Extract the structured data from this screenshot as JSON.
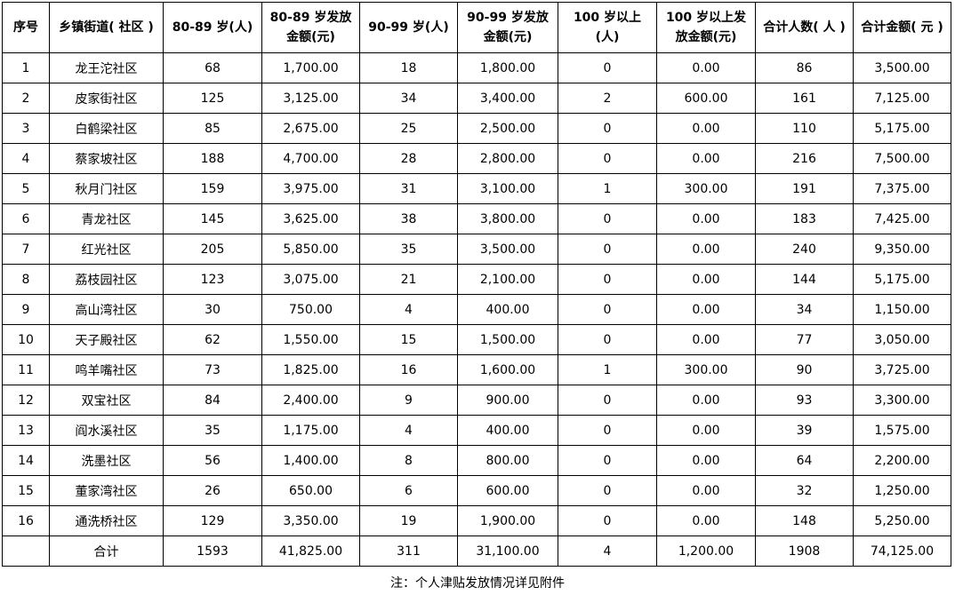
{
  "table": {
    "header": [
      [
        "序号"
      ],
      [
        "乡镇街道( 社区 )"
      ],
      [
        "80-89 岁(人)"
      ],
      [
        "80-89 岁发放",
        "金额(元)"
      ],
      [
        "90-99 岁(人)"
      ],
      [
        "90-99 岁发放",
        "金额(元)"
      ],
      [
        "100 岁以上",
        "(人)"
      ],
      [
        "100 岁以上发",
        "放金额(元)"
      ],
      [
        "合计人数( 人 )"
      ],
      [
        "合计金额( 元 )"
      ]
    ],
    "rows": [
      [
        "1",
        "龙王沱社区",
        "68",
        "1,700.00",
        "18",
        "1,800.00",
        "0",
        "0.00",
        "86",
        "3,500.00"
      ],
      [
        "2",
        "皮家街社区",
        "125",
        "3,125.00",
        "34",
        "3,400.00",
        "2",
        "600.00",
        "161",
        "7,125.00"
      ],
      [
        "3",
        "白鹤梁社区",
        "85",
        "2,675.00",
        "25",
        "2,500.00",
        "0",
        "0.00",
        "110",
        "5,175.00"
      ],
      [
        "4",
        "蔡家坡社区",
        "188",
        "4,700.00",
        "28",
        "2,800.00",
        "0",
        "0.00",
        "216",
        "7,500.00"
      ],
      [
        "5",
        "秋月门社区",
        "159",
        "3,975.00",
        "31",
        "3,100.00",
        "1",
        "300.00",
        "191",
        "7,375.00"
      ],
      [
        "6",
        "青龙社区",
        "145",
        "3,625.00",
        "38",
        "3,800.00",
        "0",
        "0.00",
        "183",
        "7,425.00"
      ],
      [
        "7",
        "红光社区",
        "205",
        "5,850.00",
        "35",
        "3,500.00",
        "0",
        "0.00",
        "240",
        "9,350.00"
      ],
      [
        "8",
        "荔枝园社区",
        "123",
        "3,075.00",
        "21",
        "2,100.00",
        "0",
        "0.00",
        "144",
        "5,175.00"
      ],
      [
        "9",
        "高山湾社区",
        "30",
        "750.00",
        "4",
        "400.00",
        "0",
        "0.00",
        "34",
        "1,150.00"
      ],
      [
        "10",
        "天子殿社区",
        "62",
        "1,550.00",
        "15",
        "1,500.00",
        "0",
        "0.00",
        "77",
        "3,050.00"
      ],
      [
        "11",
        "鸣羊嘴社区",
        "73",
        "1,825.00",
        "16",
        "1,600.00",
        "1",
        "300.00",
        "90",
        "3,725.00"
      ],
      [
        "12",
        "双宝社区",
        "84",
        "2,400.00",
        "9",
        "900.00",
        "0",
        "0.00",
        "93",
        "3,300.00"
      ],
      [
        "13",
        "阎水溪社区",
        "35",
        "1,175.00",
        "4",
        "400.00",
        "0",
        "0.00",
        "39",
        "1,575.00"
      ],
      [
        "14",
        "洗墨社区",
        "56",
        "1,400.00",
        "8",
        "800.00",
        "0",
        "0.00",
        "64",
        "2,200.00"
      ],
      [
        "15",
        "董家湾社区",
        "26",
        "650.00",
        "6",
        "600.00",
        "0",
        "0.00",
        "32",
        "1,250.00"
      ],
      [
        "16",
        "通洗桥社区",
        "129",
        "3,350.00",
        "19",
        "1,900.00",
        "0",
        "0.00",
        "148",
        "5,250.00"
      ]
    ],
    "total": {
      "label": "合计",
      "values": [
        "1593",
        "41,825.00",
        "311",
        "31,100.00",
        "4",
        "1,200.00",
        "1908",
        "74,125.00"
      ]
    }
  },
  "footnote": "注：个人津贴发放情况详见附件"
}
